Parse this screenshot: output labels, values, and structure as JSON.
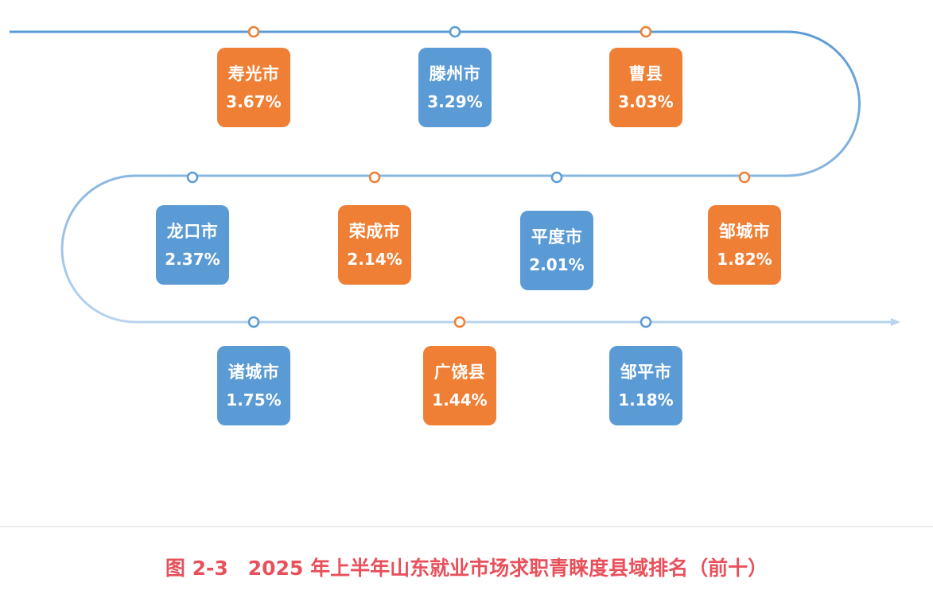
{
  "colors": {
    "orange": "#ef7f34",
    "blue": "#5b9bd5",
    "track": "#5b9bd5",
    "caption": "#e8505b"
  },
  "ranking": [
    {
      "name": "寿光市",
      "value": "3.67%",
      "color": "orange"
    },
    {
      "name": "滕州市",
      "value": "3.29%",
      "color": "blue"
    },
    {
      "name": "曹县",
      "value": "3.03%",
      "color": "orange"
    },
    {
      "name": "邹城市",
      "value": "1.82%",
      "color": "orange"
    },
    {
      "name": "平度市",
      "value": "2.01%",
      "color": "blue"
    },
    {
      "name": "荣成市",
      "value": "2.14%",
      "color": "orange"
    },
    {
      "name": "龙口市",
      "value": "2.37%",
      "color": "blue"
    },
    {
      "name": "诸城市",
      "value": "1.75%",
      "color": "blue"
    },
    {
      "name": "广饶县",
      "value": "1.44%",
      "color": "orange"
    },
    {
      "name": "邹平市",
      "value": "1.18%",
      "color": "blue"
    }
  ],
  "caption": "图 2-3　2025 年上半年山东就业市场求职青睐度县域排名（前十）"
}
